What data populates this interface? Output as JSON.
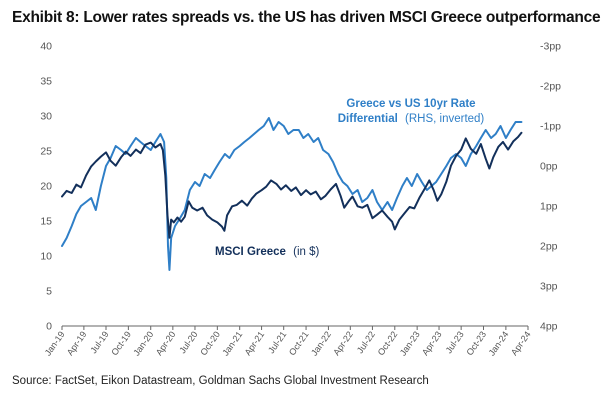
{
  "title": "Exhibit 8: Lower rates spreads vs. the US has driven MSCI Greece outperformance",
  "source": "Source: FactSet, Eikon Datastream, Goldman Sachs Global Investment Research",
  "colors": {
    "msci_greece": "#13305b",
    "rate_differential": "#2f7fc7",
    "axis": "#666666"
  },
  "chart_data": {
    "type": "line",
    "x_ticks": [
      "Jan-19",
      "Apr-19",
      "Jul-19",
      "Oct-19",
      "Jan-20",
      "Apr-20",
      "Jul-20",
      "Oct-20",
      "Jan-21",
      "Apr-21",
      "Jul-21",
      "Oct-21",
      "Jan-22",
      "Apr-22",
      "Jul-22",
      "Oct-22",
      "Jan-23",
      "Apr-23",
      "Jul-23",
      "Oct-23",
      "Jan-24",
      "Apr-24"
    ],
    "x_range": [
      "Jan-19",
      "Apr-24"
    ],
    "y_left": {
      "ticks": [
        "0",
        "5",
        "10",
        "15",
        "20",
        "25",
        "30",
        "35",
        "40"
      ],
      "range": [
        0,
        40
      ]
    },
    "y_right": {
      "ticks": [
        "-3pp",
        "-2pp",
        "-1pp",
        "0pp",
        "1pp",
        "2pp",
        "3pp",
        "4pp"
      ],
      "range": [
        -3,
        4
      ],
      "inverted": true
    },
    "annotations": {
      "msci": {
        "bold": "MSCI Greece",
        "normal": "(in $)"
      },
      "diff_line1": {
        "bold": "Greece vs US 10yr Rate"
      },
      "diff_line2": {
        "bold": "Differential",
        "normal": "(RHS, inverted)"
      }
    },
    "series": [
      {
        "axis": "left",
        "label_ref": "msci",
        "points": [
          [
            "2019-01-01",
            18.5
          ],
          [
            "2019-01-20",
            19.3
          ],
          [
            "2019-02-10",
            19.0
          ],
          [
            "2019-03-01",
            20.2
          ],
          [
            "2019-03-20",
            19.8
          ],
          [
            "2019-04-10",
            21.5
          ],
          [
            "2019-05-01",
            22.8
          ],
          [
            "2019-05-20",
            23.5
          ],
          [
            "2019-06-10",
            24.2
          ],
          [
            "2019-07-01",
            24.8
          ],
          [
            "2019-07-20",
            23.6
          ],
          [
            "2019-08-10",
            22.9
          ],
          [
            "2019-09-01",
            24.1
          ],
          [
            "2019-09-20",
            24.9
          ],
          [
            "2019-10-10",
            24.3
          ],
          [
            "2019-11-01",
            25.2
          ],
          [
            "2019-11-20",
            24.7
          ],
          [
            "2019-12-10",
            25.9
          ],
          [
            "2020-01-01",
            26.2
          ],
          [
            "2020-01-20",
            25.5
          ],
          [
            "2020-02-10",
            26.0
          ],
          [
            "2020-02-20",
            25.1
          ],
          [
            "2020-03-01",
            21.5
          ],
          [
            "2020-03-10",
            15.8
          ],
          [
            "2020-03-18",
            12.6
          ],
          [
            "2020-03-25",
            15.2
          ],
          [
            "2020-04-05",
            14.8
          ],
          [
            "2020-04-20",
            15.5
          ],
          [
            "2020-05-05",
            14.9
          ],
          [
            "2020-05-20",
            15.6
          ],
          [
            "2020-06-05",
            17.8
          ],
          [
            "2020-06-20",
            16.9
          ],
          [
            "2020-07-10",
            16.5
          ],
          [
            "2020-08-01",
            16.9
          ],
          [
            "2020-08-20",
            15.8
          ],
          [
            "2020-09-10",
            15.2
          ],
          [
            "2020-10-01",
            14.8
          ],
          [
            "2020-10-20",
            14.2
          ],
          [
            "2020-10-30",
            13.6
          ],
          [
            "2020-11-10",
            15.8
          ],
          [
            "2020-12-01",
            17.1
          ],
          [
            "2020-12-20",
            17.3
          ],
          [
            "2021-01-10",
            17.9
          ],
          [
            "2021-02-01",
            17.2
          ],
          [
            "2021-02-20",
            18.2
          ],
          [
            "2021-03-10",
            18.9
          ],
          [
            "2021-04-01",
            19.4
          ],
          [
            "2021-04-20",
            19.9
          ],
          [
            "2021-05-10",
            20.8
          ],
          [
            "2021-06-01",
            20.3
          ],
          [
            "2021-06-20",
            19.5
          ],
          [
            "2021-07-10",
            20.1
          ],
          [
            "2021-08-01",
            19.3
          ],
          [
            "2021-08-20",
            19.8
          ],
          [
            "2021-09-10",
            18.7
          ],
          [
            "2021-10-01",
            19.4
          ],
          [
            "2021-10-20",
            18.8
          ],
          [
            "2021-11-10",
            19.2
          ],
          [
            "2021-12-01",
            18.1
          ],
          [
            "2021-12-20",
            18.6
          ],
          [
            "2022-01-10",
            19.5
          ],
          [
            "2022-02-01",
            20.3
          ],
          [
            "2022-02-20",
            18.6
          ],
          [
            "2022-03-07",
            16.9
          ],
          [
            "2022-03-25",
            17.8
          ],
          [
            "2022-04-10",
            18.5
          ],
          [
            "2022-05-01",
            17.1
          ],
          [
            "2022-05-20",
            16.9
          ],
          [
            "2022-06-10",
            17.3
          ],
          [
            "2022-07-01",
            15.4
          ],
          [
            "2022-07-20",
            15.9
          ],
          [
            "2022-08-10",
            16.5
          ],
          [
            "2022-09-01",
            15.6
          ],
          [
            "2022-09-20",
            14.9
          ],
          [
            "2022-10-01",
            13.8
          ],
          [
            "2022-10-20",
            15.2
          ],
          [
            "2022-11-10",
            16.1
          ],
          [
            "2022-12-01",
            17.0
          ],
          [
            "2022-12-20",
            16.8
          ],
          [
            "2023-01-10",
            18.3
          ],
          [
            "2023-02-01",
            19.6
          ],
          [
            "2023-02-20",
            20.8
          ],
          [
            "2023-03-10",
            19.4
          ],
          [
            "2023-03-25",
            17.9
          ],
          [
            "2023-04-10",
            18.8
          ],
          [
            "2023-05-01",
            20.6
          ],
          [
            "2023-05-20",
            22.9
          ],
          [
            "2023-06-10",
            24.3
          ],
          [
            "2023-07-01",
            25.2
          ],
          [
            "2023-07-20",
            26.8
          ],
          [
            "2023-08-10",
            25.3
          ],
          [
            "2023-09-01",
            24.6
          ],
          [
            "2023-09-20",
            26.0
          ],
          [
            "2023-10-10",
            23.9
          ],
          [
            "2023-10-25",
            22.5
          ],
          [
            "2023-11-10",
            24.1
          ],
          [
            "2023-12-01",
            25.6
          ],
          [
            "2023-12-20",
            26.3
          ],
          [
            "2024-01-10",
            25.2
          ],
          [
            "2024-02-01",
            26.4
          ],
          [
            "2024-02-20",
            27.0
          ],
          [
            "2024-03-05",
            27.6
          ]
        ]
      },
      {
        "axis": "right",
        "label_ref": "diff",
        "points": [
          [
            "2019-01-01",
            2.0
          ],
          [
            "2019-01-20",
            1.8
          ],
          [
            "2019-02-10",
            1.5
          ],
          [
            "2019-03-01",
            1.2
          ],
          [
            "2019-03-20",
            1.0
          ],
          [
            "2019-04-10",
            0.9
          ],
          [
            "2019-05-01",
            0.8
          ],
          [
            "2019-05-20",
            1.1
          ],
          [
            "2019-06-10",
            0.5
          ],
          [
            "2019-07-01",
            0.0
          ],
          [
            "2019-07-20",
            -0.2
          ],
          [
            "2019-08-10",
            -0.5
          ],
          [
            "2019-09-01",
            -0.4
          ],
          [
            "2019-09-20",
            -0.3
          ],
          [
            "2019-10-10",
            -0.5
          ],
          [
            "2019-11-01",
            -0.7
          ],
          [
            "2019-11-20",
            -0.6
          ],
          [
            "2019-12-10",
            -0.5
          ],
          [
            "2020-01-01",
            -0.4
          ],
          [
            "2020-01-20",
            -0.6
          ],
          [
            "2020-02-10",
            -0.8
          ],
          [
            "2020-02-25",
            -0.6
          ],
          [
            "2020-03-05",
            0.3
          ],
          [
            "2020-03-12",
            2.0
          ],
          [
            "2020-03-18",
            2.6
          ],
          [
            "2020-03-25",
            1.8
          ],
          [
            "2020-04-10",
            1.5
          ],
          [
            "2020-05-01",
            1.3
          ],
          [
            "2020-05-20",
            1.1
          ],
          [
            "2020-06-10",
            0.6
          ],
          [
            "2020-07-01",
            0.4
          ],
          [
            "2020-07-20",
            0.5
          ],
          [
            "2020-08-10",
            0.2
          ],
          [
            "2020-09-01",
            0.3
          ],
          [
            "2020-09-20",
            0.1
          ],
          [
            "2020-10-10",
            -0.1
          ],
          [
            "2020-11-01",
            -0.3
          ],
          [
            "2020-11-20",
            -0.2
          ],
          [
            "2020-12-10",
            -0.4
          ],
          [
            "2021-01-01",
            -0.5
          ],
          [
            "2021-01-20",
            -0.6
          ],
          [
            "2021-02-10",
            -0.7
          ],
          [
            "2021-03-01",
            -0.8
          ],
          [
            "2021-03-20",
            -0.9
          ],
          [
            "2021-04-10",
            -1.0
          ],
          [
            "2021-05-01",
            -1.2
          ],
          [
            "2021-05-20",
            -0.9
          ],
          [
            "2021-06-10",
            -1.1
          ],
          [
            "2021-07-01",
            -1.0
          ],
          [
            "2021-07-20",
            -0.8
          ],
          [
            "2021-08-10",
            -0.9
          ],
          [
            "2021-09-01",
            -0.9
          ],
          [
            "2021-09-20",
            -0.7
          ],
          [
            "2021-10-10",
            -0.8
          ],
          [
            "2021-11-01",
            -0.6
          ],
          [
            "2021-11-20",
            -0.7
          ],
          [
            "2021-12-10",
            -0.4
          ],
          [
            "2022-01-01",
            -0.3
          ],
          [
            "2022-01-20",
            -0.1
          ],
          [
            "2022-02-10",
            0.2
          ],
          [
            "2022-03-01",
            0.4
          ],
          [
            "2022-03-20",
            0.5
          ],
          [
            "2022-04-10",
            0.7
          ],
          [
            "2022-05-01",
            0.6
          ],
          [
            "2022-05-20",
            0.9
          ],
          [
            "2022-06-10",
            0.8
          ],
          [
            "2022-07-01",
            0.6
          ],
          [
            "2022-07-20",
            0.9
          ],
          [
            "2022-08-10",
            1.1
          ],
          [
            "2022-09-01",
            0.9
          ],
          [
            "2022-09-20",
            1.1
          ],
          [
            "2022-10-10",
            0.8
          ],
          [
            "2022-11-01",
            0.5
          ],
          [
            "2022-11-20",
            0.3
          ],
          [
            "2022-12-10",
            0.5
          ],
          [
            "2023-01-01",
            0.2
          ],
          [
            "2023-01-20",
            0.4
          ],
          [
            "2023-02-10",
            0.6
          ],
          [
            "2023-03-01",
            0.5
          ],
          [
            "2023-03-20",
            0.4
          ],
          [
            "2023-04-10",
            0.2
          ],
          [
            "2023-05-01",
            0.0
          ],
          [
            "2023-05-20",
            -0.2
          ],
          [
            "2023-06-10",
            -0.3
          ],
          [
            "2023-07-01",
            -0.2
          ],
          [
            "2023-07-20",
            0.0
          ],
          [
            "2023-08-10",
            -0.3
          ],
          [
            "2023-09-01",
            -0.5
          ],
          [
            "2023-09-20",
            -0.7
          ],
          [
            "2023-10-10",
            -0.9
          ],
          [
            "2023-11-01",
            -0.7
          ],
          [
            "2023-11-20",
            -0.8
          ],
          [
            "2023-12-10",
            -1.0
          ],
          [
            "2024-01-01",
            -0.7
          ],
          [
            "2024-01-20",
            -0.9
          ],
          [
            "2024-02-10",
            -1.1
          ],
          [
            "2024-03-05",
            -1.1
          ]
        ]
      }
    ]
  }
}
